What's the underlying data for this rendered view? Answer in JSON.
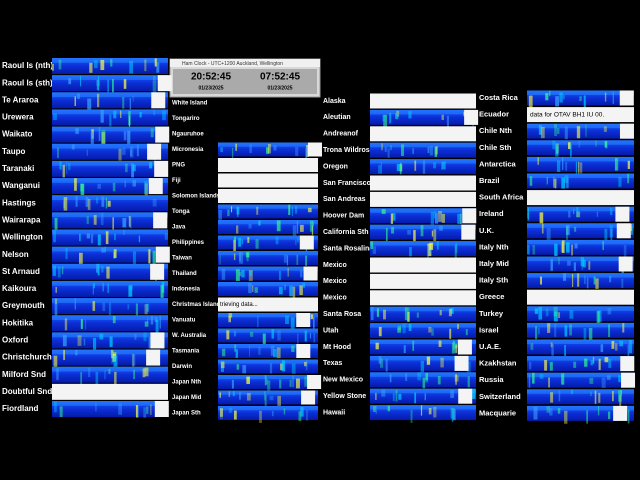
{
  "clock": {
    "title": "Ham Clock - UTC+1200 Auckland, Wellington",
    "utc_time": "20:52:45",
    "utc_date": "01/23/2025",
    "local_time": "07:52:45",
    "local_date": "01/23/2025"
  },
  "columns": [
    {
      "stations": [
        "Raoul Is (nth)",
        "Raoul Is (sth)",
        "Te Araroa",
        "Urewera",
        "Waikato",
        "Taupo",
        "Taranaki",
        "Wanganui",
        "Hastings",
        "Wairarapa",
        "Wellington",
        "Nelson",
        "St Arnaud",
        "Kaikoura",
        "Greymouth",
        "Hokitika",
        "Oxford",
        "Christchurch",
        "Milford Snd",
        "Doubtful Snd",
        "Fiordland"
      ]
    },
    {
      "stations": [
        "White Island",
        "Tongariro",
        "Ngauruhoe",
        "Micronesia",
        "PNG",
        "Fiji",
        "Solomon Islands",
        "Tonga",
        "Java",
        "Philippines",
        "Taiwan",
        "Thailand",
        "Indonesia",
        "Christmas Island",
        "Vanuatu",
        "W. Australia",
        "Tasmania",
        "Darwin",
        "Japan Nth",
        "Japan Mid",
        "Japan Sth"
      ]
    },
    {
      "stations": [
        "Alaska",
        "Aleutian",
        "Andreanof",
        "Trona Wildrose",
        "Oregon",
        "San Francisco",
        "San Andreas",
        "Hoover Dam",
        "California Sth",
        "Santa Rosalina",
        "Mexico",
        "Mexico",
        "Mexico",
        "Santa Rosa",
        "Utah",
        "Mt Hood",
        "Texas",
        "New Mexico",
        "Yellow Stone",
        "Hawaii"
      ]
    },
    {
      "stations": [
        "Costa Rica",
        "Ecuador",
        "Chile Nth",
        "Chile Sth",
        "Antarctica",
        "Brazil",
        "South Africa",
        "Ireland",
        "U.K.",
        "Italy Nth",
        "Italy Mid",
        "Italy Sth",
        "Greece",
        "Turkey",
        "Israel",
        "U.A.E.",
        "Kzakhstan",
        "Russia",
        "Switzerland",
        "Macquarie"
      ]
    }
  ],
  "messages": {
    "retrieving": "trieving data...",
    "ecuador": "data for OTAV BH1 IU 00."
  }
}
